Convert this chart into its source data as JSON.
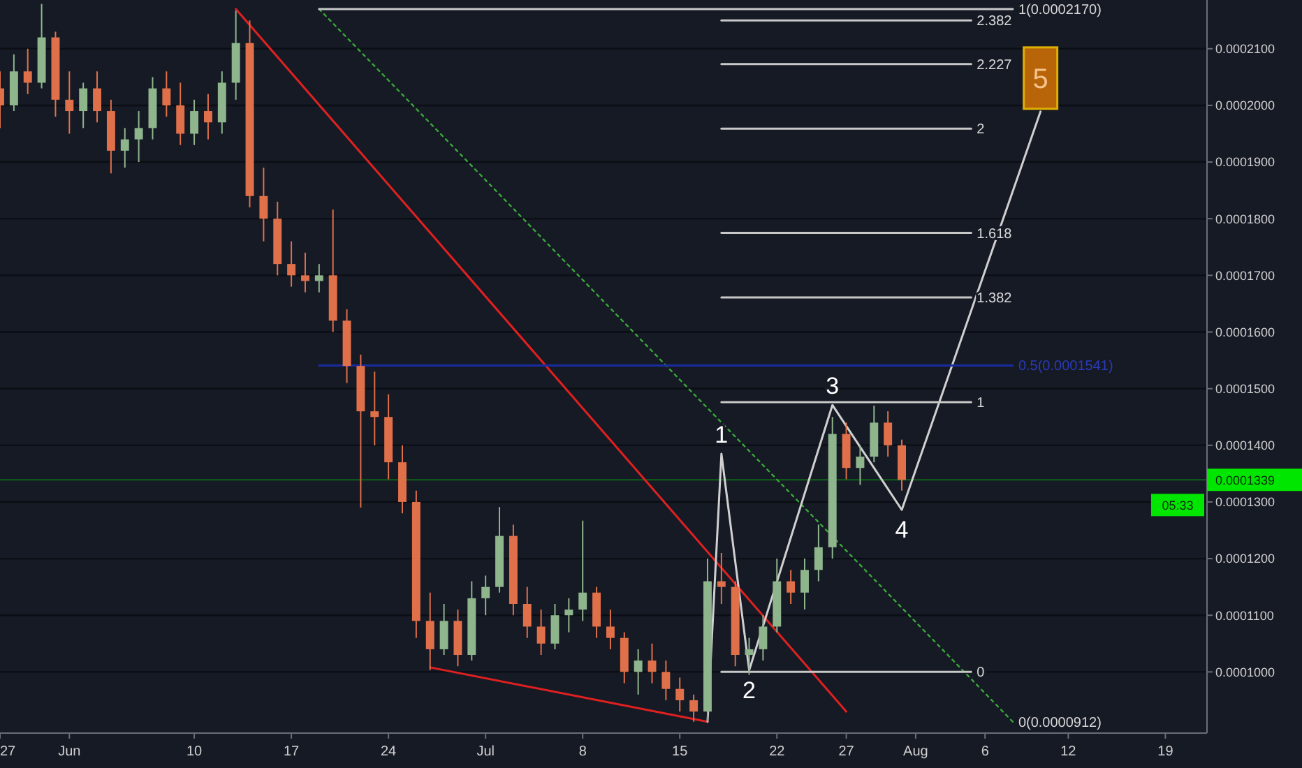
{
  "chart_data": {
    "type": "candlestick",
    "x": [
      "--05-27",
      "--05-28",
      "--05-29",
      "--05-30",
      "--05-31",
      "--06-01",
      "--06-02",
      "--06-03",
      "--06-04",
      "--06-05",
      "--06-06",
      "--06-07",
      "--06-08",
      "--06-09",
      "--06-10",
      "--06-11",
      "--06-12",
      "--06-13",
      "--06-14",
      "--06-15",
      "--06-16",
      "--06-17",
      "--06-18",
      "--06-19",
      "--06-20",
      "--06-21",
      "--06-22",
      "--06-23",
      "--06-24",
      "--06-25",
      "--06-26",
      "--06-27",
      "--06-28",
      "--06-29",
      "--06-30",
      "--07-01",
      "--07-02",
      "--07-03",
      "--07-04",
      "--07-05",
      "--07-06",
      "--07-07",
      "--07-08",
      "--07-09",
      "--07-10",
      "--07-11",
      "--07-12",
      "--07-13",
      "--07-14",
      "--07-15",
      "--07-16",
      "--07-17",
      "--07-18",
      "--07-19",
      "--07-20",
      "--07-21",
      "--07-22",
      "--07-23",
      "--07-24",
      "--07-25",
      "--07-26",
      "--07-27",
      "--07-28",
      "--07-29",
      "--07-30",
      "--07-31"
    ],
    "ohlc": [
      [
        0.000203,
        0.000206,
        0.000196,
        0.0002
      ],
      [
        0.0002,
        0.000209,
        0.000199,
        0.000206
      ],
      [
        0.000206,
        0.00021,
        0.000202,
        0.000204
      ],
      [
        0.000204,
        0.0002179,
        0.000203,
        0.000212
      ],
      [
        0.000212,
        0.000213,
        0.000198,
        0.000201
      ],
      [
        0.000201,
        0.000206,
        0.000195,
        0.000199
      ],
      [
        0.000199,
        0.000204,
        0.000196,
        0.000203
      ],
      [
        0.000203,
        0.000206,
        0.000197,
        0.000199
      ],
      [
        0.000199,
        0.000201,
        0.000188,
        0.000192
      ],
      [
        0.000192,
        0.000196,
        0.000189,
        0.000194
      ],
      [
        0.000194,
        0.000199,
        0.00019,
        0.000196
      ],
      [
        0.000196,
        0.000205,
        0.000194,
        0.000203
      ],
      [
        0.000203,
        0.000206,
        0.000198,
        0.0002
      ],
      [
        0.0002,
        0.000204,
        0.000193,
        0.000195
      ],
      [
        0.000195,
        0.000201,
        0.000193,
        0.000199
      ],
      [
        0.000199,
        0.000202,
        0.000194,
        0.000197
      ],
      [
        0.000197,
        0.000206,
        0.000195,
        0.000204
      ],
      [
        0.000204,
        0.0002167,
        0.000201,
        0.000211
      ],
      [
        0.000211,
        0.000215,
        0.000182,
        0.000184
      ],
      [
        0.000184,
        0.000189,
        0.000176,
        0.00018
      ],
      [
        0.00018,
        0.000183,
        0.00017,
        0.000172
      ],
      [
        0.000172,
        0.000176,
        0.000168,
        0.00017
      ],
      [
        0.00017,
        0.000174,
        0.000167,
        0.000169
      ],
      [
        0.000169,
        0.000172,
        0.000167,
        0.00017
      ],
      [
        0.00017,
        0.0001816,
        0.00016,
        0.000162
      ],
      [
        0.000162,
        0.000164,
        0.000151,
        0.000154
      ],
      [
        0.000154,
        0.000156,
        0.000129,
        0.000146
      ],
      [
        0.000146,
        0.000153,
        0.00014,
        0.000145
      ],
      [
        0.000145,
        0.000149,
        0.000134,
        0.000137
      ],
      [
        0.000137,
        0.00014,
        0.000128,
        0.00013
      ],
      [
        0.00013,
        0.000132,
        0.000106,
        0.000109
      ],
      [
        0.000109,
        0.000114,
        0.0001003,
        0.000104
      ],
      [
        0.000104,
        0.000112,
        0.000103,
        0.000109
      ],
      [
        0.000109,
        0.000111,
        0.000101,
        0.000103
      ],
      [
        0.000103,
        0.000116,
        0.000102,
        0.000113
      ],
      [
        0.000113,
        0.000117,
        0.00011,
        0.000115
      ],
      [
        0.000115,
        0.0001291,
        0.000114,
        0.000124
      ],
      [
        0.000124,
        0.000126,
        0.00011,
        0.000112
      ],
      [
        0.000112,
        0.000115,
        0.000106,
        0.000108
      ],
      [
        0.000108,
        0.000111,
        0.000103,
        0.000105
      ],
      [
        0.000105,
        0.000112,
        0.000104,
        0.00011
      ],
      [
        0.00011,
        0.000113,
        0.000107,
        0.000111
      ],
      [
        0.000111,
        0.0001267,
        0.000109,
        0.000114
      ],
      [
        0.000114,
        0.000115,
        0.000106,
        0.000108
      ],
      [
        0.000108,
        0.000111,
        0.000104,
        0.000106
      ],
      [
        0.000106,
        0.000107,
        9.8e-05,
        0.0001
      ],
      [
        0.0001,
        0.000104,
        9.6e-05,
        0.000102
      ],
      [
        0.000102,
        0.000105,
        9.8e-05,
        0.0001
      ],
      [
        0.0001,
        0.000102,
        9.5e-05,
        9.7e-05
      ],
      [
        9.7e-05,
        9.9e-05,
        9.3e-05,
        9.5e-05
      ],
      [
        9.5e-05,
        9.6e-05,
        9.12e-05,
        9.3e-05
      ],
      [
        9.3e-05,
        0.00012,
        9.12e-05,
        0.000116
      ],
      [
        0.000116,
        0.000121,
        0.000112,
        0.000115
      ],
      [
        0.000115,
        0.000116,
        0.000101,
        0.000103
      ],
      [
        0.000103,
        0.000106,
        9.95e-05,
        0.000104
      ],
      [
        0.000104,
        0.00011,
        0.000102,
        0.000108
      ],
      [
        0.000108,
        0.00012,
        0.000107,
        0.000116
      ],
      [
        0.000116,
        0.000118,
        0.000112,
        0.000114
      ],
      [
        0.000114,
        0.00012,
        0.000111,
        0.000118
      ],
      [
        0.000118,
        0.000126,
        0.000116,
        0.000122
      ],
      [
        0.000122,
        0.000145,
        0.00012,
        0.000142
      ],
      [
        0.000142,
        0.000144,
        0.000134,
        0.000136
      ],
      [
        0.000136,
        0.00014,
        0.000133,
        0.000138
      ],
      [
        0.000138,
        0.000147,
        0.000137,
        0.000144
      ],
      [
        0.000144,
        0.000146,
        0.000138,
        0.00014
      ],
      [
        0.00014,
        0.000141,
        0.000132,
        0.0001339
      ]
    ],
    "colors": [
      "#e0704a",
      "#8fb58c",
      "#e0704a",
      "#8fb58c",
      "#e0704a",
      "#e0704a",
      "#8fb58c",
      "#e0704a",
      "#e0704a",
      "#8fb58c",
      "#8fb58c",
      "#8fb58c",
      "#e0704a",
      "#e0704a",
      "#8fb58c",
      "#e0704a",
      "#8fb58c",
      "#8fb58c",
      "#e0704a",
      "#e0704a",
      "#e0704a",
      "#e0704a",
      "#e0704a",
      "#8fb58c",
      "#e0704a",
      "#e0704a",
      "#e0704a",
      "#e0704a",
      "#e0704a",
      "#e0704a",
      "#e0704a",
      "#e0704a",
      "#8fb58c",
      "#e0704a",
      "#8fb58c",
      "#8fb58c",
      "#8fb58c",
      "#e0704a",
      "#e0704a",
      "#e0704a",
      "#8fb58c",
      "#8fb58c",
      "#8fb58c",
      "#e0704a",
      "#e0704a",
      "#e0704a",
      "#8fb58c",
      "#e0704a",
      "#e0704a",
      "#e0704a",
      "#e0704a",
      "#8fb58c",
      "#e0704a",
      "#e0704a",
      "#8fb58c",
      "#8fb58c",
      "#8fb58c",
      "#e0704a",
      "#8fb58c",
      "#8fb58c",
      "#8fb58c",
      "#e0704a",
      "#8fb58c",
      "#8fb58c",
      "#e0704a",
      "#e0704a"
    ],
    "series": [
      {
        "type": "line",
        "color": "#e02020",
        "line_style": "solid",
        "x": [
          "--06-13",
          "--07-27"
        ],
        "values": [
          0.000217,
          9.3e-05
        ]
      },
      {
        "type": "line",
        "color": "#e02020",
        "line_style": "solid",
        "x": [
          "--06-27",
          "--07-17"
        ],
        "values": [
          0.0001008,
          9.12e-05
        ]
      },
      {
        "type": "line",
        "color": "#3aa83a",
        "line_style": "dotted",
        "x": [
          "--06-19",
          "--08-08"
        ],
        "values": [
          0.000217,
          9.12e-05
        ]
      },
      {
        "type": "line",
        "color": "#d0d0d0",
        "line_style": "solid",
        "x": [
          "--07-17",
          "--07-18",
          "--07-20",
          "--07-26",
          "--07-31",
          "--08-10"
        ],
        "values": [
          9.12e-05,
          0.0001385,
          0.0001003,
          0.0001471,
          0.0001286,
          0.0001989
        ]
      },
      {
        "type": "line",
        "color": "#c8c8c8",
        "line_style": "solid",
        "x": [
          "--07-18",
          "--08-05"
        ],
        "values": [
          0.000215,
          0.000215
        ]
      },
      {
        "type": "line",
        "color": "#c8c8c8",
        "line_style": "solid",
        "x": [
          "--07-18",
          "--08-05"
        ],
        "values": [
          0.0002073,
          0.0002073
        ]
      },
      {
        "type": "line",
        "color": "#c8c8c8",
        "line_style": "solid",
        "x": [
          "--07-18",
          "--08-05"
        ],
        "values": [
          0.0001959,
          0.0001959
        ]
      },
      {
        "type": "line",
        "color": "#c8c8c8",
        "line_style": "solid",
        "x": [
          "--07-18",
          "--08-05"
        ],
        "values": [
          0.0001775,
          0.0001775
        ]
      },
      {
        "type": "line",
        "color": "#c8c8c8",
        "line_style": "solid",
        "x": [
          "--07-18",
          "--08-05"
        ],
        "values": [
          0.0001661,
          0.0001661
        ]
      },
      {
        "type": "line",
        "color": "#c8c8c8",
        "line_style": "solid",
        "x": [
          "--07-18",
          "--08-05"
        ],
        "values": [
          0.0001476,
          0.0001476
        ]
      },
      {
        "type": "line",
        "color": "#c8c8c8",
        "line_style": "solid",
        "x": [
          "--07-18",
          "--08-05"
        ],
        "values": [
          0.0001,
          0.0001
        ]
      },
      {
        "type": "line",
        "color": "#c8c8c8",
        "line_style": "solid",
        "x": [
          "--06-19",
          "--08-08"
        ],
        "values": [
          0.000217,
          0.000217
        ]
      },
      {
        "type": "line",
        "color": "#1a2ba0",
        "line_style": "solid",
        "x": [
          "--06-19",
          "--08-08"
        ],
        "values": [
          0.0001541,
          0.0001541
        ]
      }
    ],
    "ref_lines": [
      {
        "axis": "y",
        "value": 0.0001339,
        "label": "0.0001339",
        "color": "#00e600"
      }
    ],
    "annotations": [
      {
        "text": "1",
        "x": "--07-18",
        "y": 0.0001385
      },
      {
        "text": "2",
        "x": "--07-20",
        "y": 0.0001003
      },
      {
        "text": "3",
        "x": "--07-26",
        "y": 0.0001471
      },
      {
        "text": "4",
        "x": "--07-31",
        "y": 0.0001286
      },
      {
        "text": "5",
        "x": "--08-10",
        "y": 0.0001989
      },
      {
        "text": "2.382",
        "x": "--08-05",
        "y": 0.000215
      },
      {
        "text": "2.227",
        "x": "--08-05",
        "y": 0.0002073
      },
      {
        "text": "2",
        "x": "--08-05",
        "y": 0.0001959
      },
      {
        "text": "1.618",
        "x": "--08-05",
        "y": 0.0001775
      },
      {
        "text": "1.382",
        "x": "--08-05",
        "y": 0.0001661
      },
      {
        "text": "1",
        "x": "--08-05",
        "y": 0.0001476
      },
      {
        "text": "0",
        "x": "--08-05",
        "y": 0.0001
      },
      {
        "text": "1(0.0002170)",
        "x": "--08-08",
        "y": 0.000217
      },
      {
        "text": "0.5(0.0001541)",
        "x": "--08-08",
        "y": 0.0001541
      },
      {
        "text": "0(0.0000912)",
        "x": "--08-08",
        "y": 9.12e-05
      },
      "05:33"
    ],
    "xlim": [
      "--05-27",
      "--08-22"
    ],
    "xticks": [
      {
        "value": "--05-27",
        "label": "27"
      },
      {
        "value": "--06-01",
        "label": "Jun"
      },
      {
        "value": "--06-10",
        "label": "10"
      },
      {
        "value": "--06-17",
        "label": "17"
      },
      {
        "value": "--06-24",
        "label": "24"
      },
      {
        "value": "--07-01",
        "label": "Jul"
      },
      {
        "value": "--07-08",
        "label": "8"
      },
      {
        "value": "--07-15",
        "label": "15"
      },
      {
        "value": "--07-22",
        "label": "22"
      },
      {
        "value": "--07-27",
        "label": "27"
      },
      {
        "value": "--08-01",
        "label": "Aug"
      },
      {
        "value": "--08-06",
        "label": "6"
      },
      {
        "value": "--08-12",
        "label": "12"
      },
      {
        "value": "--08-19",
        "label": "19"
      }
    ],
    "ylim": [
      8.92e-05,
      0.0002186
    ],
    "yticks": [
      {
        "value": 0.0001,
        "label": "0.0001000"
      },
      {
        "value": 0.00011,
        "label": "0.0001100"
      },
      {
        "value": 0.00012,
        "label": "0.0001200"
      },
      {
        "value": 0.00013,
        "label": "0.0001300"
      },
      {
        "value": 0.00014,
        "label": "0.0001400"
      },
      {
        "value": 0.00015,
        "label": "0.0001500"
      },
      {
        "value": 0.00016,
        "label": "0.0001600"
      },
      {
        "value": 0.00017,
        "label": "0.0001700"
      },
      {
        "value": 0.00018,
        "label": "0.0001800"
      },
      {
        "value": 0.00019,
        "label": "0.0001900"
      },
      {
        "value": 0.0002,
        "label": "0.0002000"
      },
      {
        "value": 0.00021,
        "label": "0.0002100"
      }
    ],
    "grid": "y"
  }
}
